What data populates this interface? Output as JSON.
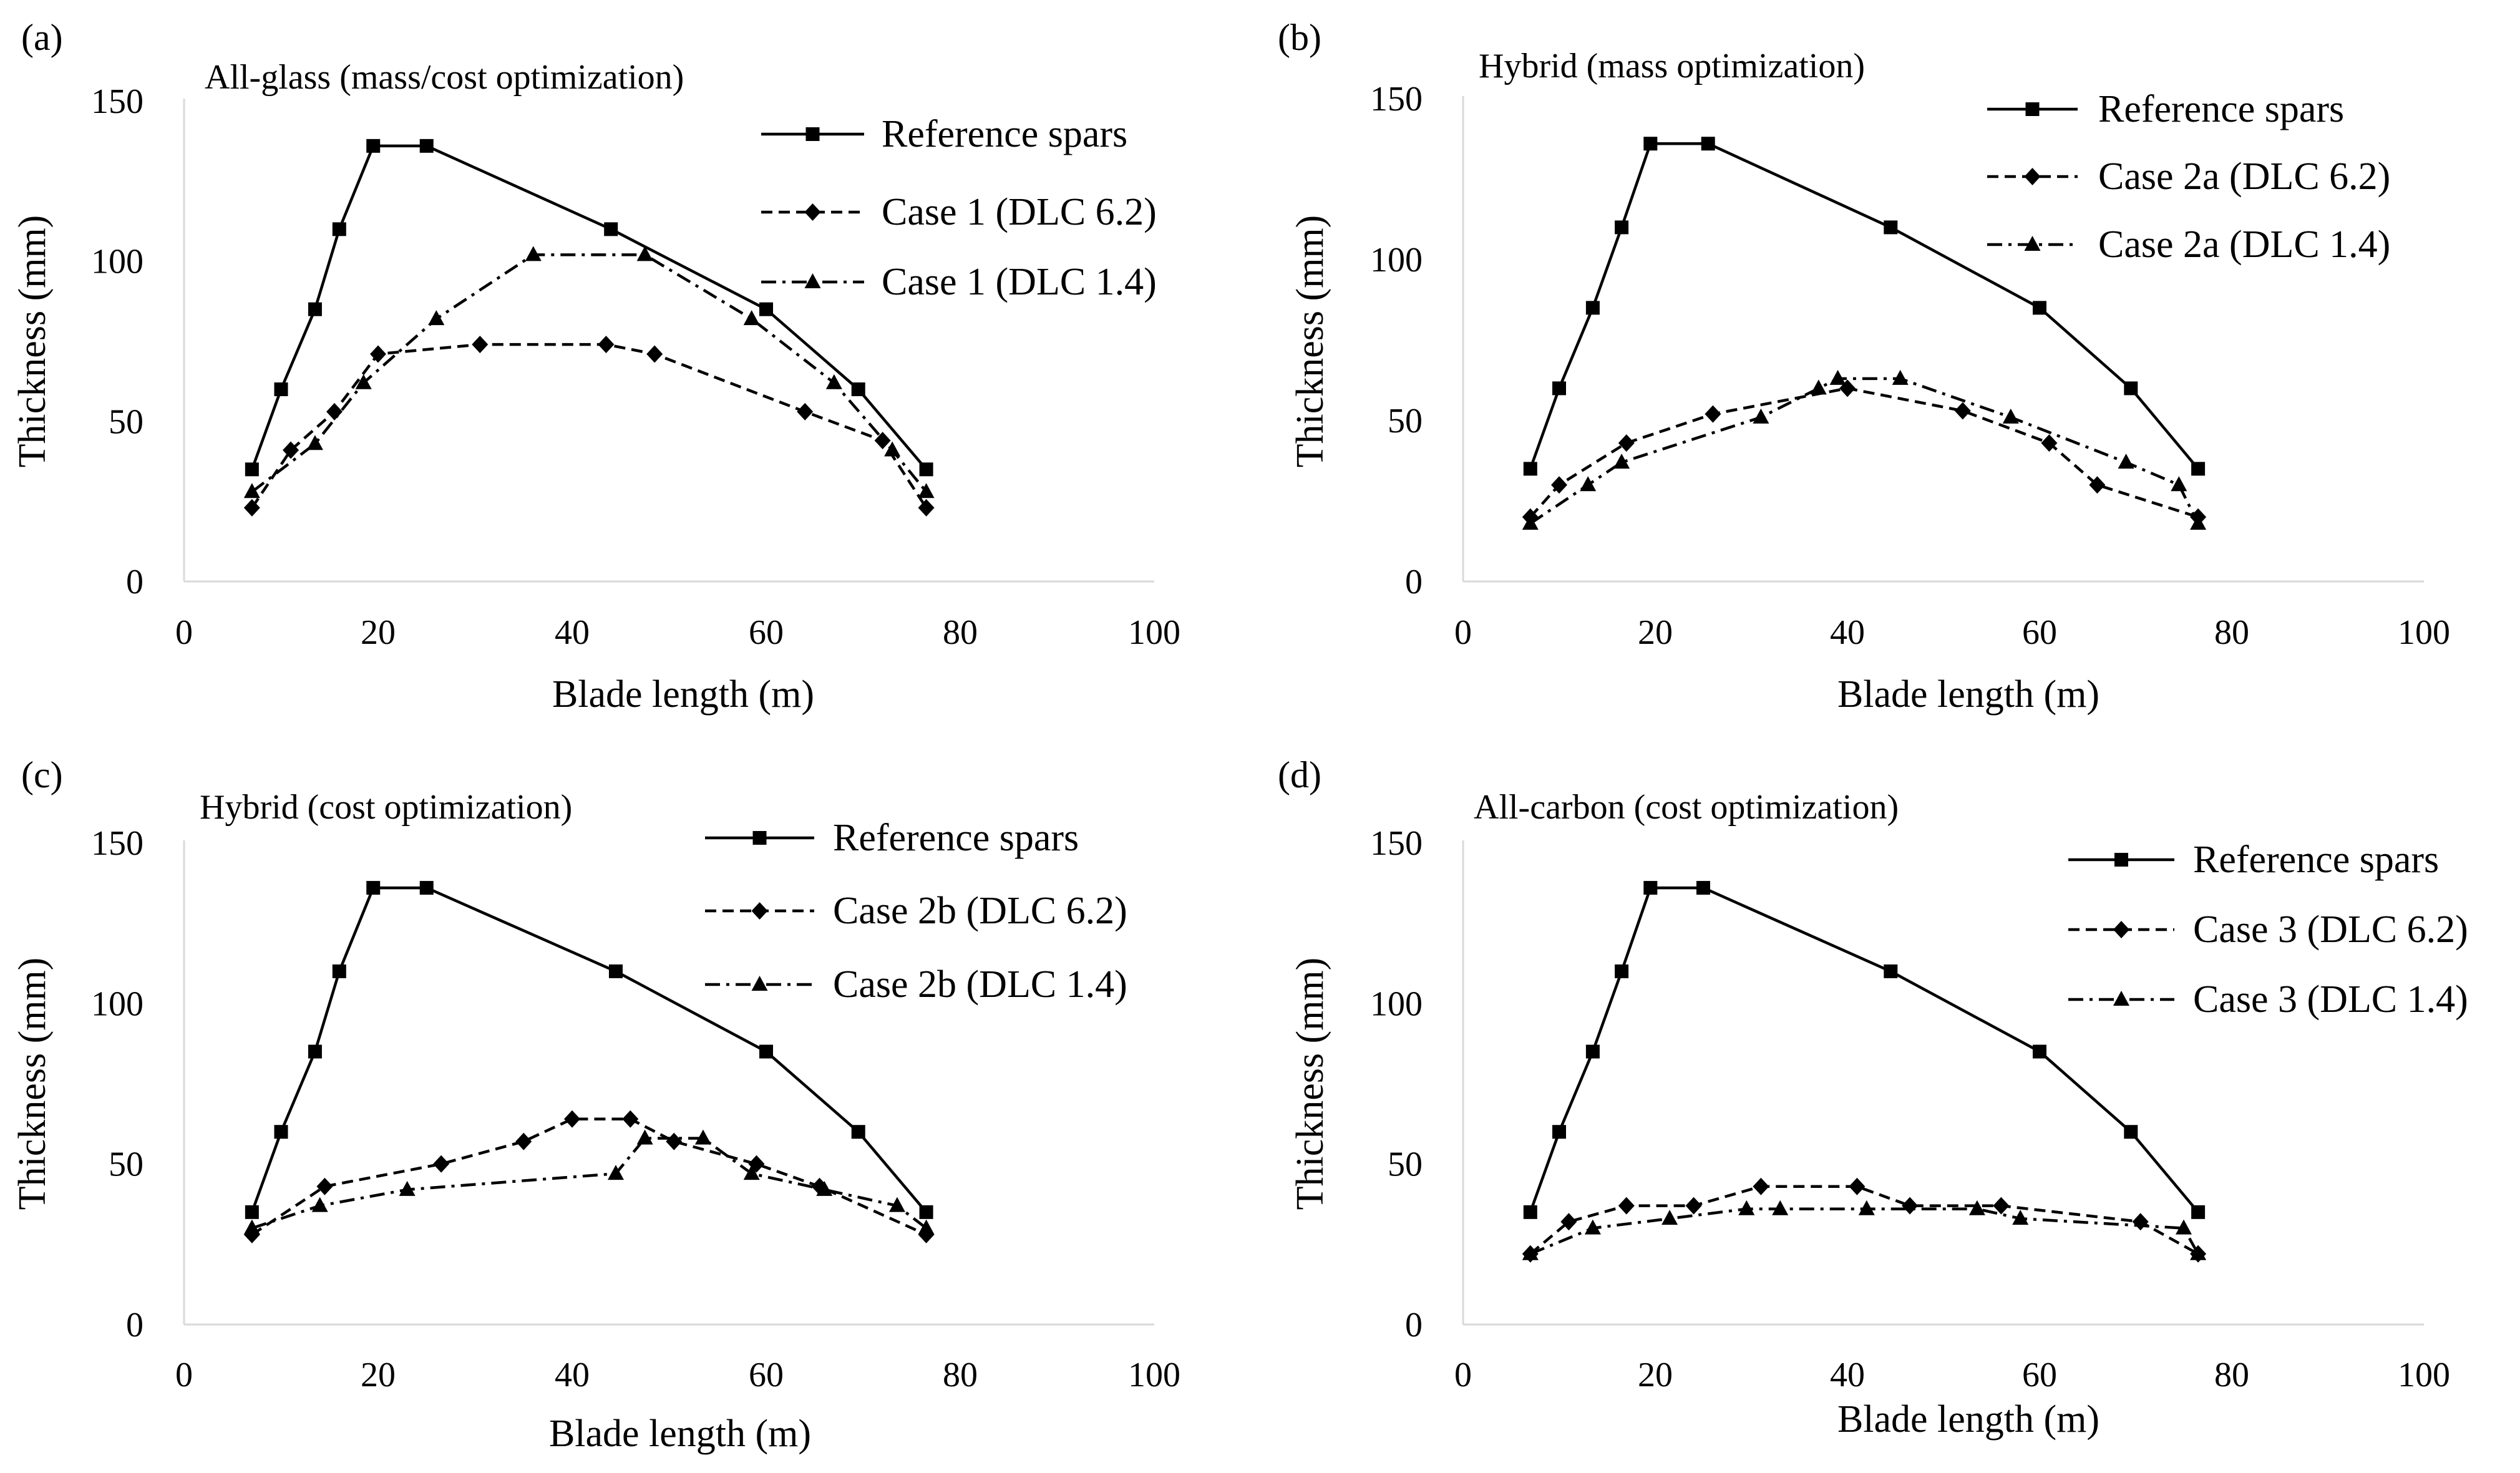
{
  "chart_data": [
    {
      "type": "line",
      "panel_label": "(a)",
      "title": "All-glass (mass/cost optimization)",
      "xlabel": "Blade length (m)",
      "ylabel": "Thickness (mm)",
      "xlim": [
        0,
        100
      ],
      "ylim": [
        0,
        150
      ],
      "xticks": [
        0,
        20,
        40,
        60,
        80,
        100
      ],
      "yticks": [
        0,
        50,
        100,
        150
      ],
      "grid": false,
      "legend_position": "top-right",
      "series": [
        {
          "name": "Reference spars",
          "style": "solid",
          "marker": "square",
          "x": [
            7,
            10,
            13.5,
            16,
            19.5,
            25,
            44,
            60,
            69.5,
            76.5
          ],
          "y": [
            35,
            60,
            85,
            110,
            136,
            136,
            110,
            85,
            60,
            35
          ]
        },
        {
          "name": "Case 1 (DLC 6.2)",
          "style": "dashed",
          "marker": "diamond",
          "x": [
            7,
            11,
            15.5,
            20,
            30.5,
            43.5,
            48.5,
            64,
            72,
            76.5
          ],
          "y": [
            23,
            41,
            53,
            71,
            74,
            74,
            71,
            53,
            44,
            23
          ]
        },
        {
          "name": "Case 1 (DLC 1.4)",
          "style": "dashdot",
          "marker": "triangle",
          "x": [
            7,
            13.5,
            18.5,
            26,
            36,
            47.5,
            58.5,
            67,
            73,
            76.5
          ],
          "y": [
            28,
            43,
            62,
            82,
            102,
            102,
            82,
            62,
            41,
            28
          ]
        }
      ]
    },
    {
      "type": "line",
      "panel_label": "(b)",
      "title": "Hybrid (mass optimization)",
      "xlabel": "Blade length (m)",
      "ylabel": "Thickness (mm)",
      "xlim": [
        0,
        100
      ],
      "ylim": [
        0,
        150
      ],
      "xticks": [
        0,
        20,
        40,
        60,
        80,
        100
      ],
      "yticks": [
        0,
        50,
        100,
        150
      ],
      "grid": false,
      "legend_position": "top-right",
      "series": [
        {
          "name": "Reference spars",
          "style": "solid",
          "marker": "square",
          "x": [
            7,
            10,
            13.5,
            16.5,
            19.5,
            25.5,
            44.5,
            60,
            69.5,
            76.5
          ],
          "y": [
            35,
            60,
            85,
            110,
            136,
            136,
            110,
            85,
            60,
            35
          ]
        },
        {
          "name": "Case 2a (DLC 6.2)",
          "style": "dashed",
          "marker": "diamond",
          "x": [
            7,
            10,
            17,
            26,
            40,
            52,
            61,
            66,
            76.5
          ],
          "y": [
            20,
            30,
            43,
            52,
            60,
            53,
            43,
            30,
            20
          ]
        },
        {
          "name": "Case 2a (DLC 1.4)",
          "style": "dashdot",
          "marker": "triangle",
          "x": [
            7,
            13,
            16.5,
            31,
            37,
            39,
            45.5,
            57,
            69,
            74.5,
            76.5
          ],
          "y": [
            18,
            30,
            37,
            51,
            60,
            63,
            63,
            51,
            37,
            30,
            18
          ]
        }
      ]
    },
    {
      "type": "line",
      "panel_label": "(c)",
      "title": "Hybrid (cost optimization)",
      "xlabel": "Blade length (m)",
      "ylabel": "Thickness (mm)",
      "xlim": [
        0,
        100
      ],
      "ylim": [
        0,
        150
      ],
      "xticks": [
        0,
        20,
        40,
        60,
        80,
        100
      ],
      "yticks": [
        0,
        50,
        100,
        150
      ],
      "grid": false,
      "legend_position": "top-right",
      "series": [
        {
          "name": "Reference spars",
          "style": "solid",
          "marker": "square",
          "x": [
            7,
            10,
            13.5,
            16,
            19.5,
            25,
            44.5,
            60,
            69.5,
            76.5
          ],
          "y": [
            35,
            60,
            85,
            110,
            136,
            136,
            110,
            85,
            60,
            35
          ]
        },
        {
          "name": "Case 2b (DLC 6.2)",
          "style": "dashed",
          "marker": "diamond",
          "x": [
            7,
            14.5,
            26.5,
            35,
            40,
            46,
            50.5,
            59,
            65.5,
            76.5
          ],
          "y": [
            28,
            43,
            50,
            57,
            64,
            64,
            57,
            50,
            43,
            28
          ]
        },
        {
          "name": "Case 2b (DLC 1.4)",
          "style": "dashdot",
          "marker": "triangle",
          "x": [
            7,
            14,
            23,
            44.5,
            47.5,
            53.5,
            58.5,
            66,
            73.5,
            76.5
          ],
          "y": [
            30,
            37,
            42,
            47,
            58,
            58,
            47,
            42,
            37,
            30
          ]
        }
      ]
    },
    {
      "type": "line",
      "panel_label": "(d)",
      "title": "All-carbon (cost optimization)",
      "xlabel": "Blade length (m)",
      "ylabel": "Thickness (mm)",
      "xlim": [
        0,
        100
      ],
      "ylim": [
        0,
        150
      ],
      "xticks": [
        0,
        20,
        40,
        60,
        80,
        100
      ],
      "yticks": [
        0,
        50,
        100,
        150
      ],
      "grid": false,
      "legend_position": "top-right",
      "series": [
        {
          "name": "Reference spars",
          "style": "solid",
          "marker": "square",
          "x": [
            7,
            10,
            13.5,
            16.5,
            19.5,
            25,
            44.5,
            60,
            69.5,
            76.5
          ],
          "y": [
            35,
            60,
            85,
            110,
            136,
            136,
            110,
            85,
            60,
            35
          ]
        },
        {
          "name": "Case 3 (DLC 6.2)",
          "style": "dashed",
          "marker": "diamond",
          "x": [
            7,
            11,
            17,
            24,
            31,
            41,
            46.5,
            56,
            70.5,
            76.5
          ],
          "y": [
            22,
            32,
            37,
            37,
            43,
            43,
            37,
            37,
            32,
            22
          ]
        },
        {
          "name": "Case 3 (DLC 1.4)",
          "style": "dashdot",
          "marker": "triangle",
          "x": [
            7,
            13.5,
            21.5,
            29.5,
            33,
            42,
            53.5,
            58,
            75,
            76.5
          ],
          "y": [
            22,
            30,
            33,
            36,
            36,
            36,
            36,
            33,
            30,
            22
          ]
        }
      ]
    }
  ]
}
